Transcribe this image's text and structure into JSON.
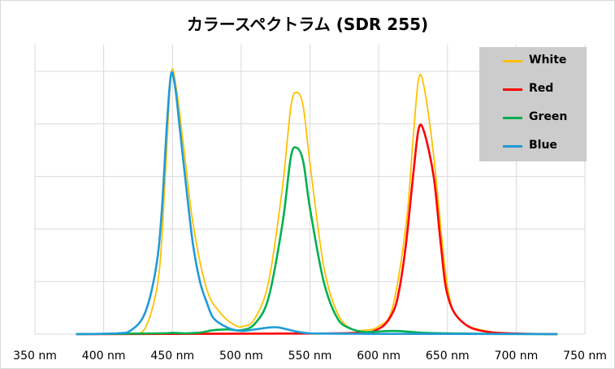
{
  "chart_data": {
    "type": "line",
    "title": "カラースペクトラム (SDR 255)",
    "xlabel": "",
    "ylabel": "",
    "xlim": [
      350,
      750
    ],
    "ylim": [
      0,
      1
    ],
    "x_ticks": [
      350,
      400,
      450,
      500,
      550,
      600,
      650,
      700,
      750
    ],
    "x_tick_labels": [
      "350 nm",
      "400 nm",
      "450 nm",
      "500 nm",
      "550 nm",
      "600 nm",
      "650 nm",
      "700 nm",
      "750 nm"
    ],
    "y_grid": [
      0,
      0.2,
      0.4,
      0.6,
      0.8,
      1.0
    ],
    "grid": true,
    "legend": "top-right",
    "series": [
      {
        "name": "White",
        "color": "#FFC000",
        "x": [
          380,
          420,
          430,
          440,
          445,
          449,
          453,
          458,
          465,
          475,
          485,
          495,
          502,
          510,
          520,
          530,
          536,
          540,
          545,
          550,
          560,
          570,
          580,
          590,
          600,
          610,
          620,
          625,
          629,
          633,
          640,
          650,
          660,
          680,
          700,
          730
        ],
        "y": [
          0,
          0.002,
          0.02,
          0.22,
          0.62,
          0.99,
          0.93,
          0.72,
          0.42,
          0.17,
          0.08,
          0.035,
          0.03,
          0.06,
          0.2,
          0.56,
          0.86,
          0.92,
          0.87,
          0.65,
          0.26,
          0.08,
          0.02,
          0.015,
          0.03,
          0.1,
          0.42,
          0.74,
          0.97,
          0.94,
          0.68,
          0.18,
          0.05,
          0.01,
          0.002,
          0
        ]
      },
      {
        "name": "Red",
        "color": "#FF0000",
        "x": [
          380,
          500,
          580,
          600,
          610,
          615,
          620,
          625,
          629,
          633,
          640,
          645,
          650,
          660,
          680,
          730
        ],
        "y": [
          0,
          0.002,
          0.004,
          0.02,
          0.08,
          0.17,
          0.35,
          0.6,
          0.78,
          0.77,
          0.6,
          0.35,
          0.15,
          0.05,
          0.008,
          0
        ],
        "note_x": "nm"
      },
      {
        "name": "Green",
        "color": "#00B050",
        "x": [
          380,
          440,
          450,
          460,
          470,
          480,
          490,
          500,
          510,
          520,
          530,
          536,
          540,
          545,
          550,
          560,
          570,
          580,
          590,
          600,
          610,
          620,
          630,
          650,
          680,
          730
        ],
        "y": [
          0,
          0.003,
          0.005,
          0.003,
          0.006,
          0.015,
          0.018,
          0.015,
          0.04,
          0.14,
          0.42,
          0.67,
          0.71,
          0.66,
          0.48,
          0.2,
          0.06,
          0.02,
          0.008,
          0.01,
          0.012,
          0.01,
          0.006,
          0.003,
          0.001,
          0
        ]
      },
      {
        "name": "Blue",
        "color": "#1F9BD7",
        "x": [
          380,
          410,
          420,
          430,
          438,
          442,
          446,
          449,
          452,
          455,
          460,
          465,
          470,
          475,
          480,
          490,
          500,
          510,
          520,
          526,
          532,
          540,
          550,
          570,
          600,
          650,
          730
        ],
        "y": [
          0,
          0.003,
          0.015,
          0.08,
          0.25,
          0.45,
          0.8,
          0.99,
          0.94,
          0.8,
          0.56,
          0.34,
          0.2,
          0.12,
          0.06,
          0.025,
          0.012,
          0.018,
          0.025,
          0.026,
          0.02,
          0.01,
          0.003,
          0.002,
          0.001,
          0.001,
          0
        ]
      }
    ]
  }
}
